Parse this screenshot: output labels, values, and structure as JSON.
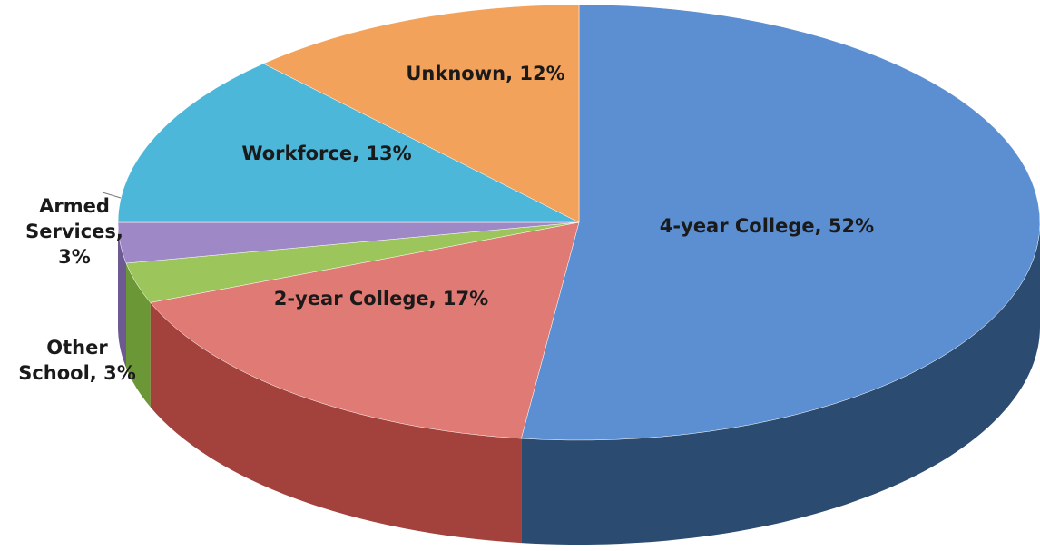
{
  "chart_data": {
    "type": "pie3d",
    "values": [
      52,
      17,
      3,
      3,
      13,
      12
    ],
    "value_labels": [
      "4-year College, 52%",
      "2-year College, 17%",
      "Other School, 3%",
      "Armed Services, 3%",
      "Workforce, 13%",
      "Unknown, 12%"
    ],
    "colors": [
      "#5c8fd1",
      "#e07a75",
      "#9cc65b",
      "#9f88c6",
      "#4cb7d8",
      "#f3a25c"
    ],
    "side_colors": [
      "#2b4b70",
      "#a3423c",
      "#6c9736",
      "#6e5a92",
      "#2a7d99",
      "#b86f30"
    ]
  }
}
